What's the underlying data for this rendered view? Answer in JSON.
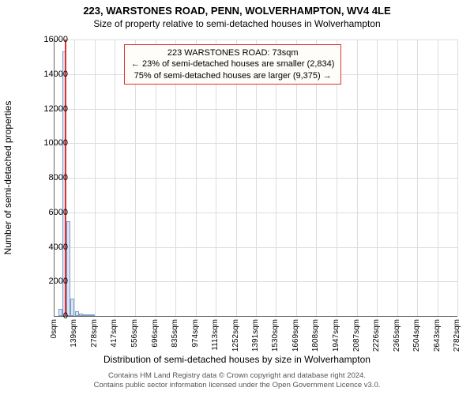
{
  "header": {
    "address": "223, WARSTONES ROAD, PENN, WOLVERHAMPTON, WV4 4LE",
    "subtitle": "Size of property relative to semi-detached houses in Wolverhampton"
  },
  "chart": {
    "type": "histogram",
    "ylabel": "Number of semi-detached properties",
    "xlabel": "Distribution of semi-detached houses by size in Wolverhampton",
    "ylim": [
      0,
      16000
    ],
    "ytick_step": 2000,
    "yticks": [
      0,
      2000,
      4000,
      6000,
      8000,
      10000,
      12000,
      14000,
      16000
    ],
    "xticks": [
      0,
      139,
      278,
      417,
      556,
      696,
      835,
      974,
      1113,
      1252,
      1391,
      1530,
      1669,
      1808,
      1947,
      2087,
      2226,
      2365,
      2504,
      2643,
      2782
    ],
    "xtick_unit": "sqm",
    "xlim": [
      0,
      2782
    ],
    "bin_width": 27.82,
    "bars": [
      {
        "x0": 27.82,
        "x1": 55.64,
        "y": 400
      },
      {
        "x0": 55.64,
        "x1": 83.46,
        "y": 15300
      },
      {
        "x0": 83.46,
        "x1": 111.28,
        "y": 5500
      },
      {
        "x0": 111.28,
        "x1": 139.1,
        "y": 1000
      },
      {
        "x0": 139.1,
        "x1": 166.92,
        "y": 280
      },
      {
        "x0": 166.92,
        "x1": 194.74,
        "y": 120
      },
      {
        "x0": 194.74,
        "x1": 222.56,
        "y": 60
      },
      {
        "x0": 222.56,
        "x1": 250.38,
        "y": 30
      },
      {
        "x0": 250.38,
        "x1": 278.2,
        "y": 15
      }
    ],
    "bar_fill": "#d9e4f5",
    "bar_border": "#7a9cc6",
    "grid_color": "#dddddd",
    "background_color": "#ffffff",
    "marker": {
      "x": 73,
      "color": "#e03030"
    },
    "annotation": {
      "line1": "223 WARSTONES ROAD: 73sqm",
      "line2": "← 23% of semi-detached houses are smaller (2,834)",
      "line3": "75% of semi-detached houses are larger (9,375) →",
      "border_color": "#e03030",
      "bg_color": "#fffdfa"
    }
  },
  "footer": {
    "line1": "Contains HM Land Registry data © Crown copyright and database right 2024.",
    "line2": "Contains public sector information licensed under the Open Government Licence v3.0."
  }
}
